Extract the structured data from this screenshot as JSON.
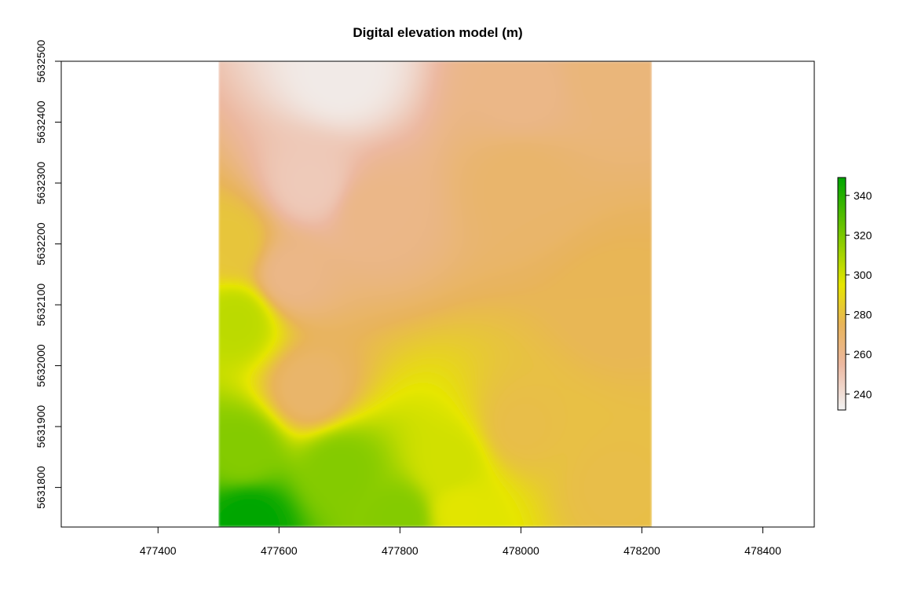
{
  "chart_data": {
    "type": "heatmap",
    "title": "Digital elevation model (m)",
    "xlim": [
      477240,
      478485
    ],
    "ylim": [
      5631735,
      5632500
    ],
    "x_ticks": [
      477400,
      477600,
      477800,
      478000,
      478200,
      478400
    ],
    "y_ticks": [
      5631800,
      5631900,
      5632000,
      5632100,
      5632200,
      5632300,
      5632400,
      5632500
    ],
    "raster_extent": {
      "xmin": 477500,
      "xmax": 478217,
      "ymin": 5631735,
      "ymax": 5632500
    },
    "legend": {
      "placement": "right",
      "range": [
        232,
        349
      ],
      "ticks": [
        240,
        260,
        280,
        300,
        320,
        340
      ]
    },
    "colormap": [
      {
        "value": 232,
        "color": "#f2f2f2"
      },
      {
        "value": 255,
        "color": "#ecb8a0"
      },
      {
        "value": 275,
        "color": "#e8b45a"
      },
      {
        "value": 295,
        "color": "#e6e600"
      },
      {
        "value": 349,
        "color": "#00a600"
      }
    ],
    "surface_samples": [
      {
        "x": 477700,
        "y": 5632480,
        "value": 235
      },
      {
        "x": 477650,
        "y": 5632300,
        "value": 248
      },
      {
        "x": 477620,
        "y": 5632150,
        "value": 262
      },
      {
        "x": 477760,
        "y": 5632250,
        "value": 262
      },
      {
        "x": 478000,
        "y": 5632450,
        "value": 262
      },
      {
        "x": 478150,
        "y": 5632480,
        "value": 266
      },
      {
        "x": 478000,
        "y": 5632300,
        "value": 270
      },
      {
        "x": 478150,
        "y": 5632100,
        "value": 276
      },
      {
        "x": 478000,
        "y": 5631900,
        "value": 279
      },
      {
        "x": 478150,
        "y": 5631800,
        "value": 279
      },
      {
        "x": 477530,
        "y": 5632075,
        "value": 305
      },
      {
        "x": 477520,
        "y": 5632200,
        "value": 282
      },
      {
        "x": 477650,
        "y": 5631960,
        "value": 270
      },
      {
        "x": 477540,
        "y": 5631860,
        "value": 318
      },
      {
        "x": 477700,
        "y": 5631830,
        "value": 318
      },
      {
        "x": 477880,
        "y": 5631840,
        "value": 300
      },
      {
        "x": 477550,
        "y": 5631745,
        "value": 349
      },
      {
        "x": 477800,
        "y": 5631750,
        "value": 318
      },
      {
        "x": 477900,
        "y": 5631760,
        "value": 296
      }
    ]
  }
}
